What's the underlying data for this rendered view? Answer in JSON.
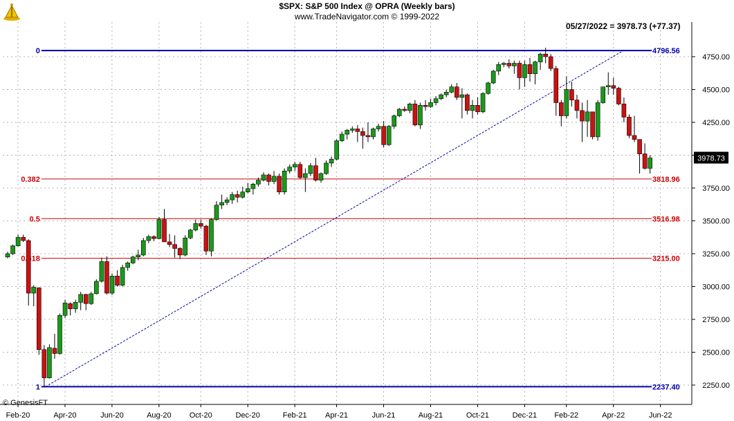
{
  "header": {
    "title": "$SPX:  S&P 500 Index @ OPRA  (Weekly bars)",
    "subtitle": "www.TradeNavigator.com © 1999-2022",
    "last_readout": "05/27/2022 = 3978.73 (+77.37)",
    "vendor": "© GenesisFT"
  },
  "chart_data": {
    "type": "candlestick",
    "title": "$SPX:  S&P 500 Index @ OPRA  (Weekly bars)",
    "ylim": [
      2150,
      4850
    ],
    "y_ticks": [
      2250,
      2500,
      2750,
      3000,
      3250,
      3500,
      3750,
      4000,
      4250,
      4500,
      4750
    ],
    "y_tick_labels": [
      "2250.00",
      "2500.00",
      "2750.00",
      "3000.00",
      "3250.00",
      "3500.00",
      "3750.00",
      "",
      "4250.00",
      "4500.00",
      "4750.00"
    ],
    "x_ticks": [
      "Feb-20",
      "Apr-20",
      "Jun-20",
      "Aug-20",
      "Oct-20",
      "Dec-20",
      "Feb-21",
      "Apr-21",
      "Jun-21",
      "Aug-21",
      "Oct-21",
      "Dec-21",
      "Feb-22",
      "Apr-22",
      "Jun-22"
    ],
    "x_tick_bars": [
      0,
      9,
      18,
      27,
      35,
      44,
      53,
      61,
      70,
      79,
      88,
      97,
      105,
      114,
      123
    ],
    "grid": true,
    "last_price": "3978.73",
    "colors": {
      "up": "#1a9a1a",
      "down": "#cc1111",
      "fib": "#cc0000",
      "extreme": "#0000aa",
      "last_box": "#000000"
    },
    "fib_levels": [
      {
        "ratio": "0",
        "price": 4796.56,
        "label": "4796.56",
        "color": "#0000aa"
      },
      {
        "ratio": "0.382",
        "price": 3818.96,
        "label": "3818.96",
        "color": "#cc0000"
      },
      {
        "ratio": "0.5",
        "price": 3516.98,
        "label": "3516.98",
        "color": "#cc0000"
      },
      {
        "ratio": "0.618",
        "price": 3215.0,
        "label": "3215.00",
        "color": "#cc0000"
      },
      {
        "ratio": "1",
        "price": 2237.4,
        "label": "2237.40",
        "color": "#0000aa"
      }
    ],
    "fib_start_bar": 7,
    "trendline": {
      "from_bar": 7,
      "from_price": 2237.4,
      "to_bar": 115,
      "to_price": 4796.56
    },
    "bars": [
      [
        3225,
        3265,
        3215,
        3250
      ],
      [
        3250,
        3320,
        3240,
        3310
      ],
      [
        3310,
        3395,
        3305,
        3375
      ],
      [
        3375,
        3395,
        3340,
        3350
      ],
      [
        3350,
        3360,
        2855,
        2950
      ],
      [
        2950,
        3010,
        2850,
        2995
      ],
      [
        2990,
        2995,
        2480,
        2520
      ],
      [
        2520,
        2555,
        2237,
        2305
      ],
      [
        2305,
        2560,
        2300,
        2535
      ],
      [
        2530,
        2640,
        2450,
        2490
      ],
      [
        2490,
        2795,
        2480,
        2780
      ],
      [
        2780,
        2900,
        2760,
        2875
      ],
      [
        2870,
        2880,
        2780,
        2830
      ],
      [
        2830,
        2900,
        2800,
        2880
      ],
      [
        2880,
        2960,
        2820,
        2940
      ],
      [
        2940,
        2945,
        2820,
        2870
      ],
      [
        2870,
        2960,
        2860,
        2945
      ],
      [
        2945,
        3055,
        2940,
        3040
      ],
      [
        3040,
        3220,
        3030,
        3190
      ],
      [
        3190,
        3230,
        2940,
        2950
      ],
      [
        2950,
        3100,
        2935,
        3080
      ],
      [
        3080,
        3125,
        3000,
        3010
      ],
      [
        3010,
        3165,
        3000,
        3145
      ],
      [
        3145,
        3190,
        3120,
        3180
      ],
      [
        3180,
        3235,
        3170,
        3225
      ],
      [
        3225,
        3280,
        3200,
        3240
      ],
      [
        3240,
        3370,
        3230,
        3350
      ],
      [
        3350,
        3395,
        3330,
        3380
      ],
      [
        3380,
        3390,
        3345,
        3365
      ],
      [
        3365,
        3530,
        3360,
        3510
      ],
      [
        3510,
        3590,
        3440,
        3340
      ],
      [
        3340,
        3400,
        3300,
        3320
      ],
      [
        3320,
        3390,
        3220,
        3290
      ],
      [
        3290,
        3300,
        3210,
        3240
      ],
      [
        3240,
        3390,
        3230,
        3370
      ],
      [
        3370,
        3440,
        3360,
        3430
      ],
      [
        3430,
        3510,
        3420,
        3480
      ],
      [
        3480,
        3510,
        3440,
        3460
      ],
      [
        3460,
        3470,
        3240,
        3270
      ],
      [
        3270,
        3520,
        3230,
        3510
      ],
      [
        3510,
        3650,
        3500,
        3620
      ],
      [
        3620,
        3700,
        3590,
        3640
      ],
      [
        3640,
        3680,
        3620,
        3660
      ],
      [
        3660,
        3720,
        3630,
        3700
      ],
      [
        3700,
        3730,
        3640,
        3680
      ],
      [
        3680,
        3760,
        3670,
        3720
      ],
      [
        3720,
        3790,
        3710,
        3745
      ],
      [
        3745,
        3790,
        3700,
        3780
      ],
      [
        3780,
        3830,
        3760,
        3810
      ],
      [
        3810,
        3870,
        3800,
        3850
      ],
      [
        3850,
        3860,
        3770,
        3800
      ],
      [
        3800,
        3880,
        3780,
        3840
      ],
      [
        3840,
        3860,
        3700,
        3720
      ],
      [
        3720,
        3900,
        3700,
        3880
      ],
      [
        3880,
        3930,
        3860,
        3910
      ],
      [
        3910,
        3950,
        3880,
        3930
      ],
      [
        3930,
        3950,
        3820,
        3830
      ],
      [
        3830,
        3900,
        3720,
        3860
      ],
      [
        3860,
        3940,
        3840,
        3920
      ],
      [
        3920,
        3980,
        3800,
        3810
      ],
      [
        3810,
        3870,
        3790,
        3860
      ],
      [
        3860,
        3960,
        3850,
        3940
      ],
      [
        3940,
        3990,
        3910,
        3970
      ],
      [
        3970,
        4120,
        3960,
        4110
      ],
      [
        4110,
        4180,
        4100,
        4160
      ],
      [
        4160,
        4200,
        4120,
        4190
      ],
      [
        4190,
        4220,
        4170,
        4200
      ],
      [
        4200,
        4230,
        4100,
        4180
      ],
      [
        4180,
        4210,
        4050,
        4150
      ],
      [
        4150,
        4250,
        4100,
        4140
      ],
      [
        4140,
        4210,
        4120,
        4200
      ],
      [
        4200,
        4240,
        4180,
        4220
      ],
      [
        4220,
        4260,
        4060,
        4080
      ],
      [
        4080,
        4230,
        4070,
        4220
      ],
      [
        4220,
        4310,
        4200,
        4300
      ],
      [
        4300,
        4360,
        4290,
        4350
      ],
      [
        4350,
        4370,
        4330,
        4340
      ],
      [
        4340,
        4400,
        4320,
        4390
      ],
      [
        4390,
        4420,
        4220,
        4230
      ],
      [
        4230,
        4400,
        4200,
        4380
      ],
      [
        4380,
        4420,
        4340,
        4370
      ],
      [
        4370,
        4430,
        4360,
        4400
      ],
      [
        4400,
        4450,
        4380,
        4430
      ],
      [
        4430,
        4470,
        4420,
        4460
      ],
      [
        4460,
        4500,
        4440,
        4480
      ],
      [
        4480,
        4540,
        4470,
        4520
      ],
      [
        4520,
        4550,
        4420,
        4440
      ],
      [
        4440,
        4510,
        4280,
        4460
      ],
      [
        4460,
        4470,
        4310,
        4340
      ],
      [
        4340,
        4420,
        4280,
        4380
      ],
      [
        4380,
        4440,
        4310,
        4330
      ],
      [
        4330,
        4480,
        4320,
        4470
      ],
      [
        4470,
        4560,
        4460,
        4550
      ],
      [
        4550,
        4650,
        4540,
        4640
      ],
      [
        4640,
        4710,
        4610,
        4690
      ],
      [
        4690,
        4710,
        4670,
        4700
      ],
      [
        4700,
        4730,
        4660,
        4680
      ],
      [
        4680,
        4720,
        4620,
        4700
      ],
      [
        4700,
        4720,
        4500,
        4590
      ],
      [
        4590,
        4720,
        4520,
        4690
      ],
      [
        4690,
        4740,
        4560,
        4620
      ],
      [
        4620,
        4720,
        4540,
        4710
      ],
      [
        4710,
        4780,
        4650,
        4770
      ],
      [
        4770,
        4818,
        4700,
        4750
      ],
      [
        4750,
        4770,
        4640,
        4660
      ],
      [
        4660,
        4680,
        4300,
        4400
      ],
      [
        4400,
        4420,
        4220,
        4300
      ],
      [
        4300,
        4600,
        4280,
        4500
      ],
      [
        4500,
        4560,
        4370,
        4420
      ],
      [
        4420,
        4460,
        4280,
        4340
      ],
      [
        4340,
        4400,
        4100,
        4260
      ],
      [
        4260,
        4420,
        4140,
        4330
      ],
      [
        4330,
        4330,
        4120,
        4140
      ],
      [
        4140,
        4420,
        4110,
        4400
      ],
      [
        4400,
        4520,
        4390,
        4520
      ],
      [
        4520,
        4630,
        4460,
        4530
      ],
      [
        4530,
        4590,
        4460,
        4510
      ],
      [
        4510,
        4520,
        4380,
        4390
      ],
      [
        4390,
        4440,
        4250,
        4290
      ],
      [
        4290,
        4310,
        4130,
        4150
      ],
      [
        4150,
        4300,
        4100,
        4120
      ],
      [
        4120,
        4100,
        3860,
        4010
      ],
      [
        4010,
        4090,
        3890,
        3900
      ],
      [
        3900,
        4000,
        3860,
        3979
      ]
    ]
  }
}
